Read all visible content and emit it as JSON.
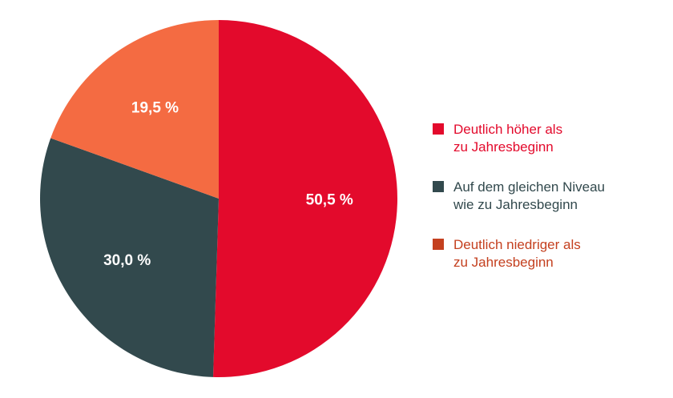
{
  "chart_data": {
    "type": "pie",
    "start_angle_deg": 0,
    "direction": "clockwise",
    "slices": [
      {
        "label_lines": [
          "Deutlich höher als",
          "zu Jahresbeginn"
        ],
        "value": 50.5,
        "value_label": "50,5 %",
        "color": "#e30a2c",
        "legend_text_color": "#e30a2c"
      },
      {
        "label_lines": [
          "Auf dem gleichen Niveau",
          "wie zu Jahresbeginn"
        ],
        "value": 30.0,
        "value_label": "30,0 %",
        "color": "#32494d",
        "legend_text_color": "#32494d"
      },
      {
        "label_lines": [
          "Deutlich niedriger als",
          "zu Jahresbeginn"
        ],
        "value": 19.5,
        "value_label": "19,5 %",
        "color": "#f46b42",
        "legend_text_color": "#c4401f",
        "legend_marker_color": "#c4401f"
      }
    ],
    "legend_position": "right"
  }
}
